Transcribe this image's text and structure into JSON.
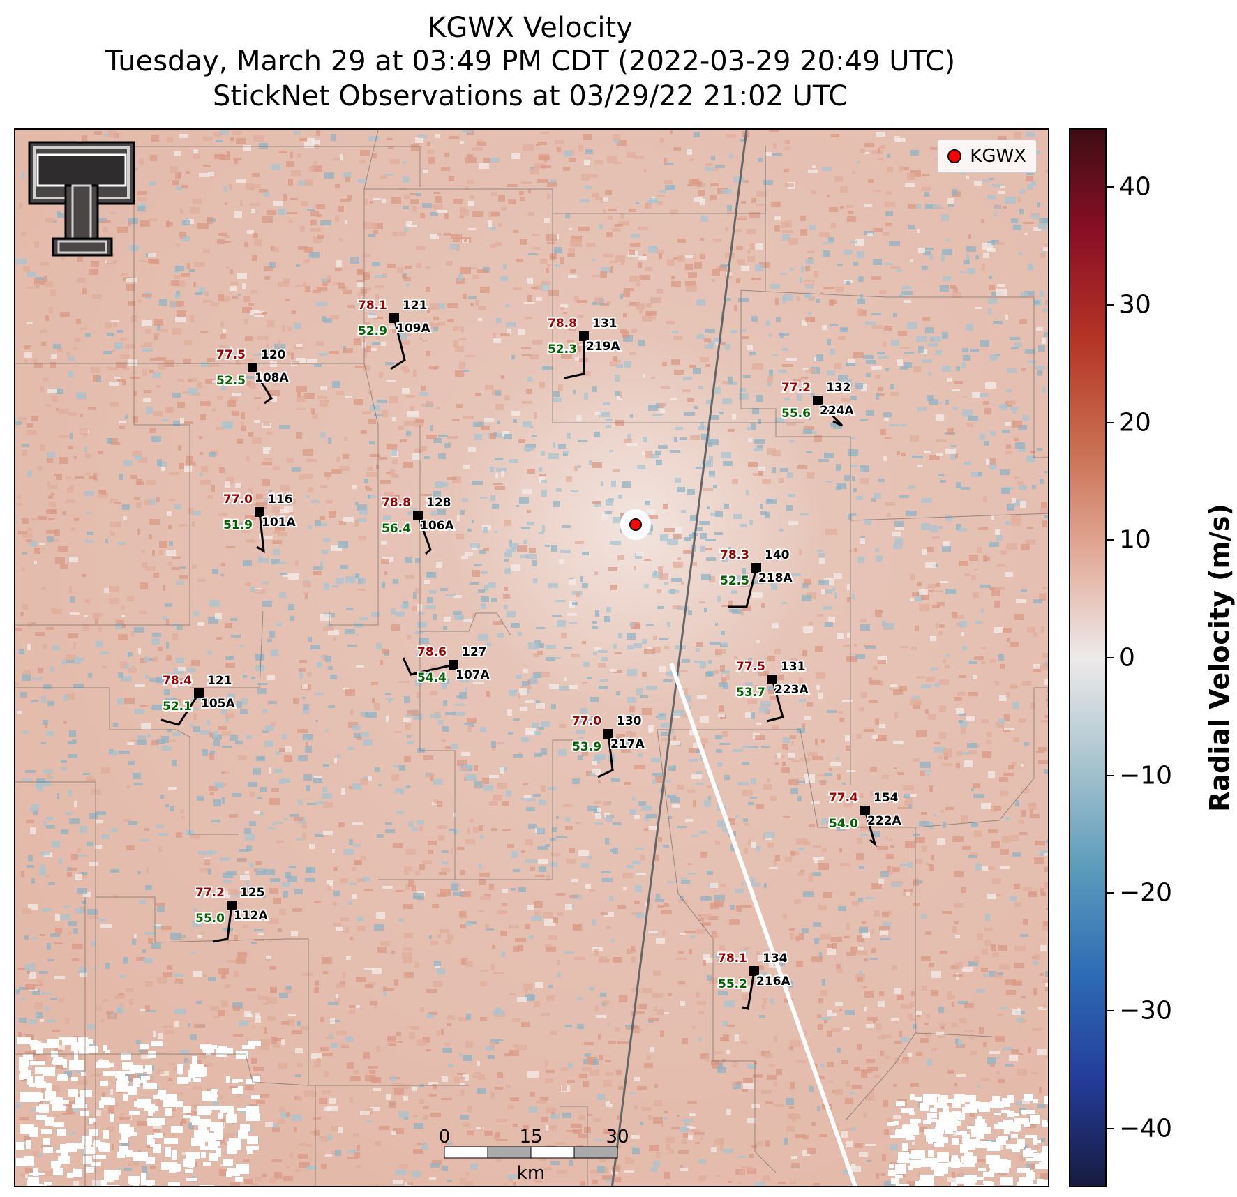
{
  "title": {
    "line1": "KGWX Velocity",
    "line2": "Tuesday, March 29 at 03:49 PM CDT (2022-03-29 20:49 UTC)",
    "line3": "StickNet Observations at 03/29/22 21:02 UTC"
  },
  "legend": {
    "label": "KGWX",
    "marker_color": "#ff0000"
  },
  "colorbar": {
    "label": "Radial Velocity (m/s)",
    "min": -45,
    "max": 45,
    "ticks": [
      "40",
      "30",
      "20",
      "10",
      "0",
      "−10",
      "−20",
      "−30",
      "−40"
    ],
    "tick_values": [
      40,
      30,
      20,
      10,
      0,
      -10,
      -20,
      -30,
      -40
    ],
    "colors": [
      "#171b3f",
      "#243c9a",
      "#2d6bb5",
      "#5b9bbb",
      "#a9c4cf",
      "#eeeaea",
      "#e2aa98",
      "#c96d50",
      "#b53526",
      "#8c0f26",
      "#3e0d14"
    ]
  },
  "scale_bar": {
    "labels": [
      "0",
      "15",
      "30"
    ],
    "unit": "km"
  },
  "stations": [
    {
      "id": "108A",
      "temp": "77.5",
      "dew": "52.5",
      "dir": "120"
    },
    {
      "id": "109A",
      "temp": "78.1",
      "dew": "52.9",
      "dir": "121"
    },
    {
      "id": "219A",
      "temp": "78.8",
      "dew": "52.3",
      "dir": "131"
    },
    {
      "id": "224A",
      "temp": "77.2",
      "dew": "55.6",
      "dir": "132"
    },
    {
      "id": "101A",
      "temp": "77.0",
      "dew": "51.9",
      "dir": "116"
    },
    {
      "id": "106A",
      "temp": "78.8",
      "dew": "56.4",
      "dir": "128"
    },
    {
      "id": "218A",
      "temp": "78.3",
      "dew": "52.5",
      "dir": "140"
    },
    {
      "id": "107A",
      "temp": "78.6",
      "dew": "54.4",
      "dir": "127"
    },
    {
      "id": "105A",
      "temp": "78.4",
      "dew": "52.1",
      "dir": "121"
    },
    {
      "id": "223A",
      "temp": "77.5",
      "dew": "53.7",
      "dir": "131"
    },
    {
      "id": "217A",
      "temp": "77.0",
      "dew": "53.9",
      "dir": "130"
    },
    {
      "id": "222A",
      "temp": "77.4",
      "dew": "54.0",
      "dir": "154"
    },
    {
      "id": "112A",
      "temp": "77.2",
      "dew": "55.0",
      "dir": "125"
    },
    {
      "id": "216A",
      "temp": "78.1",
      "dew": "55.2",
      "dir": "134"
    }
  ]
}
